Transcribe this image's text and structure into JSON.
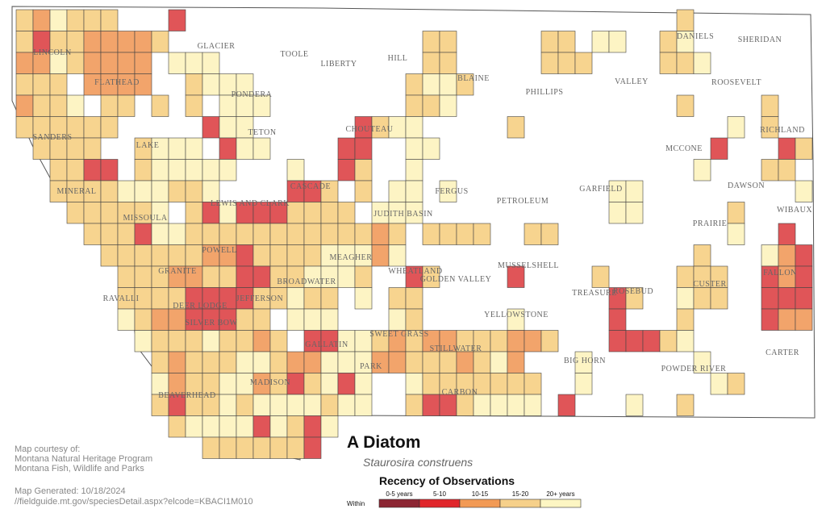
{
  "title": "A Diatom",
  "subtitle": "Staurosira construens",
  "credits": [
    "Map courtesy of:",
    "Montana Natural Heritage Program",
    "Montana Fish, Wildlife and Parks"
  ],
  "generated": "Map Generated: 10/18/2024",
  "url": "//fieldguide.mt.gov/speciesDetail.aspx?elcode=KBACI1M010",
  "legend": {
    "title": "Recency of Observations",
    "prefix": "Within",
    "items": [
      {
        "label": "0-5 years",
        "color": "#8c2633"
      },
      {
        "label": "5-10",
        "color": "#e0262b"
      },
      {
        "label": "10-15",
        "color": "#f29a55"
      },
      {
        "label": "15-20",
        "color": "#f6d08a"
      },
      {
        "label": "20+ years",
        "color": "#fdf6c3"
      }
    ]
  },
  "counties": [
    "LINCOLN",
    "FLATHEAD",
    "GLACIER",
    "TOOLE",
    "LIBERTY",
    "HILL",
    "BLAINE",
    "PHILLIPS",
    "VALLEY",
    "DANIELS",
    "SHERIDAN",
    "ROOSEVELT",
    "PONDERA",
    "TETON",
    "CHOUTEAU",
    "SANDERS",
    "LAKE",
    "RICHLAND",
    "MCCONE",
    "CASCADE",
    "MINERAL",
    "LEWIS AND CLARK",
    "FERGUS",
    "PETROLEUM",
    "GARFIELD",
    "DAWSON",
    "WIBAUX",
    "JUDITH BASIN",
    "MISSOULA",
    "PRAIRIE",
    "POWELL",
    "MEAGHER",
    "MUSSELSHELL",
    "GRANITE",
    "WHEATLAND",
    "GOLDEN VALLEY",
    "FALLON",
    "CUSTER",
    "BROADWATER",
    "RAVALLI",
    "DEER LODGE",
    "JEFFERSON",
    "TREASURE",
    "ROSEBUD",
    "SILVER BOW",
    "YELLOWSTONE",
    "SWEET GRASS",
    "STILLWATER",
    "GALLATIN",
    "PARK",
    "BIG HORN",
    "CARTER",
    "POWDER RIVER",
    "MADISON",
    "CARBON",
    "BEAVERHEAD"
  ]
}
